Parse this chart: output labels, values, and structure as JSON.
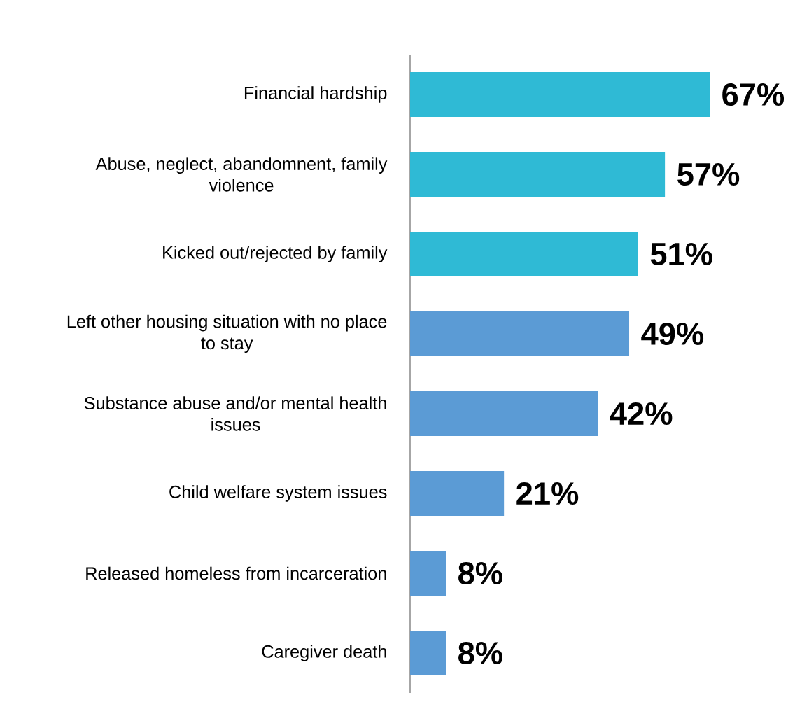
{
  "chart_data": {
    "type": "bar",
    "orientation": "horizontal",
    "categories": [
      "Financial hardship",
      "Abuse, neglect, abandomnent, family violence",
      "Kicked out/rejected by family",
      "Left other housing situation with no place to stay",
      "Substance abuse and/or mental health issues",
      "Child welfare system issues",
      "Released homeless from incarceration",
      "Caregiver death"
    ],
    "values": [
      67,
      57,
      51,
      49,
      42,
      21,
      8,
      8
    ],
    "colors": [
      "#2fbad5",
      "#2fbad5",
      "#2fbad5",
      "#5b9bd5",
      "#5b9bd5",
      "#5b9bd5",
      "#5b9bd5",
      "#5b9bd5"
    ],
    "value_labels": [
      "67%",
      "57%",
      "51%",
      "49%",
      "42%",
      "21%",
      "8%",
      "8%"
    ],
    "data_labels": false
  }
}
